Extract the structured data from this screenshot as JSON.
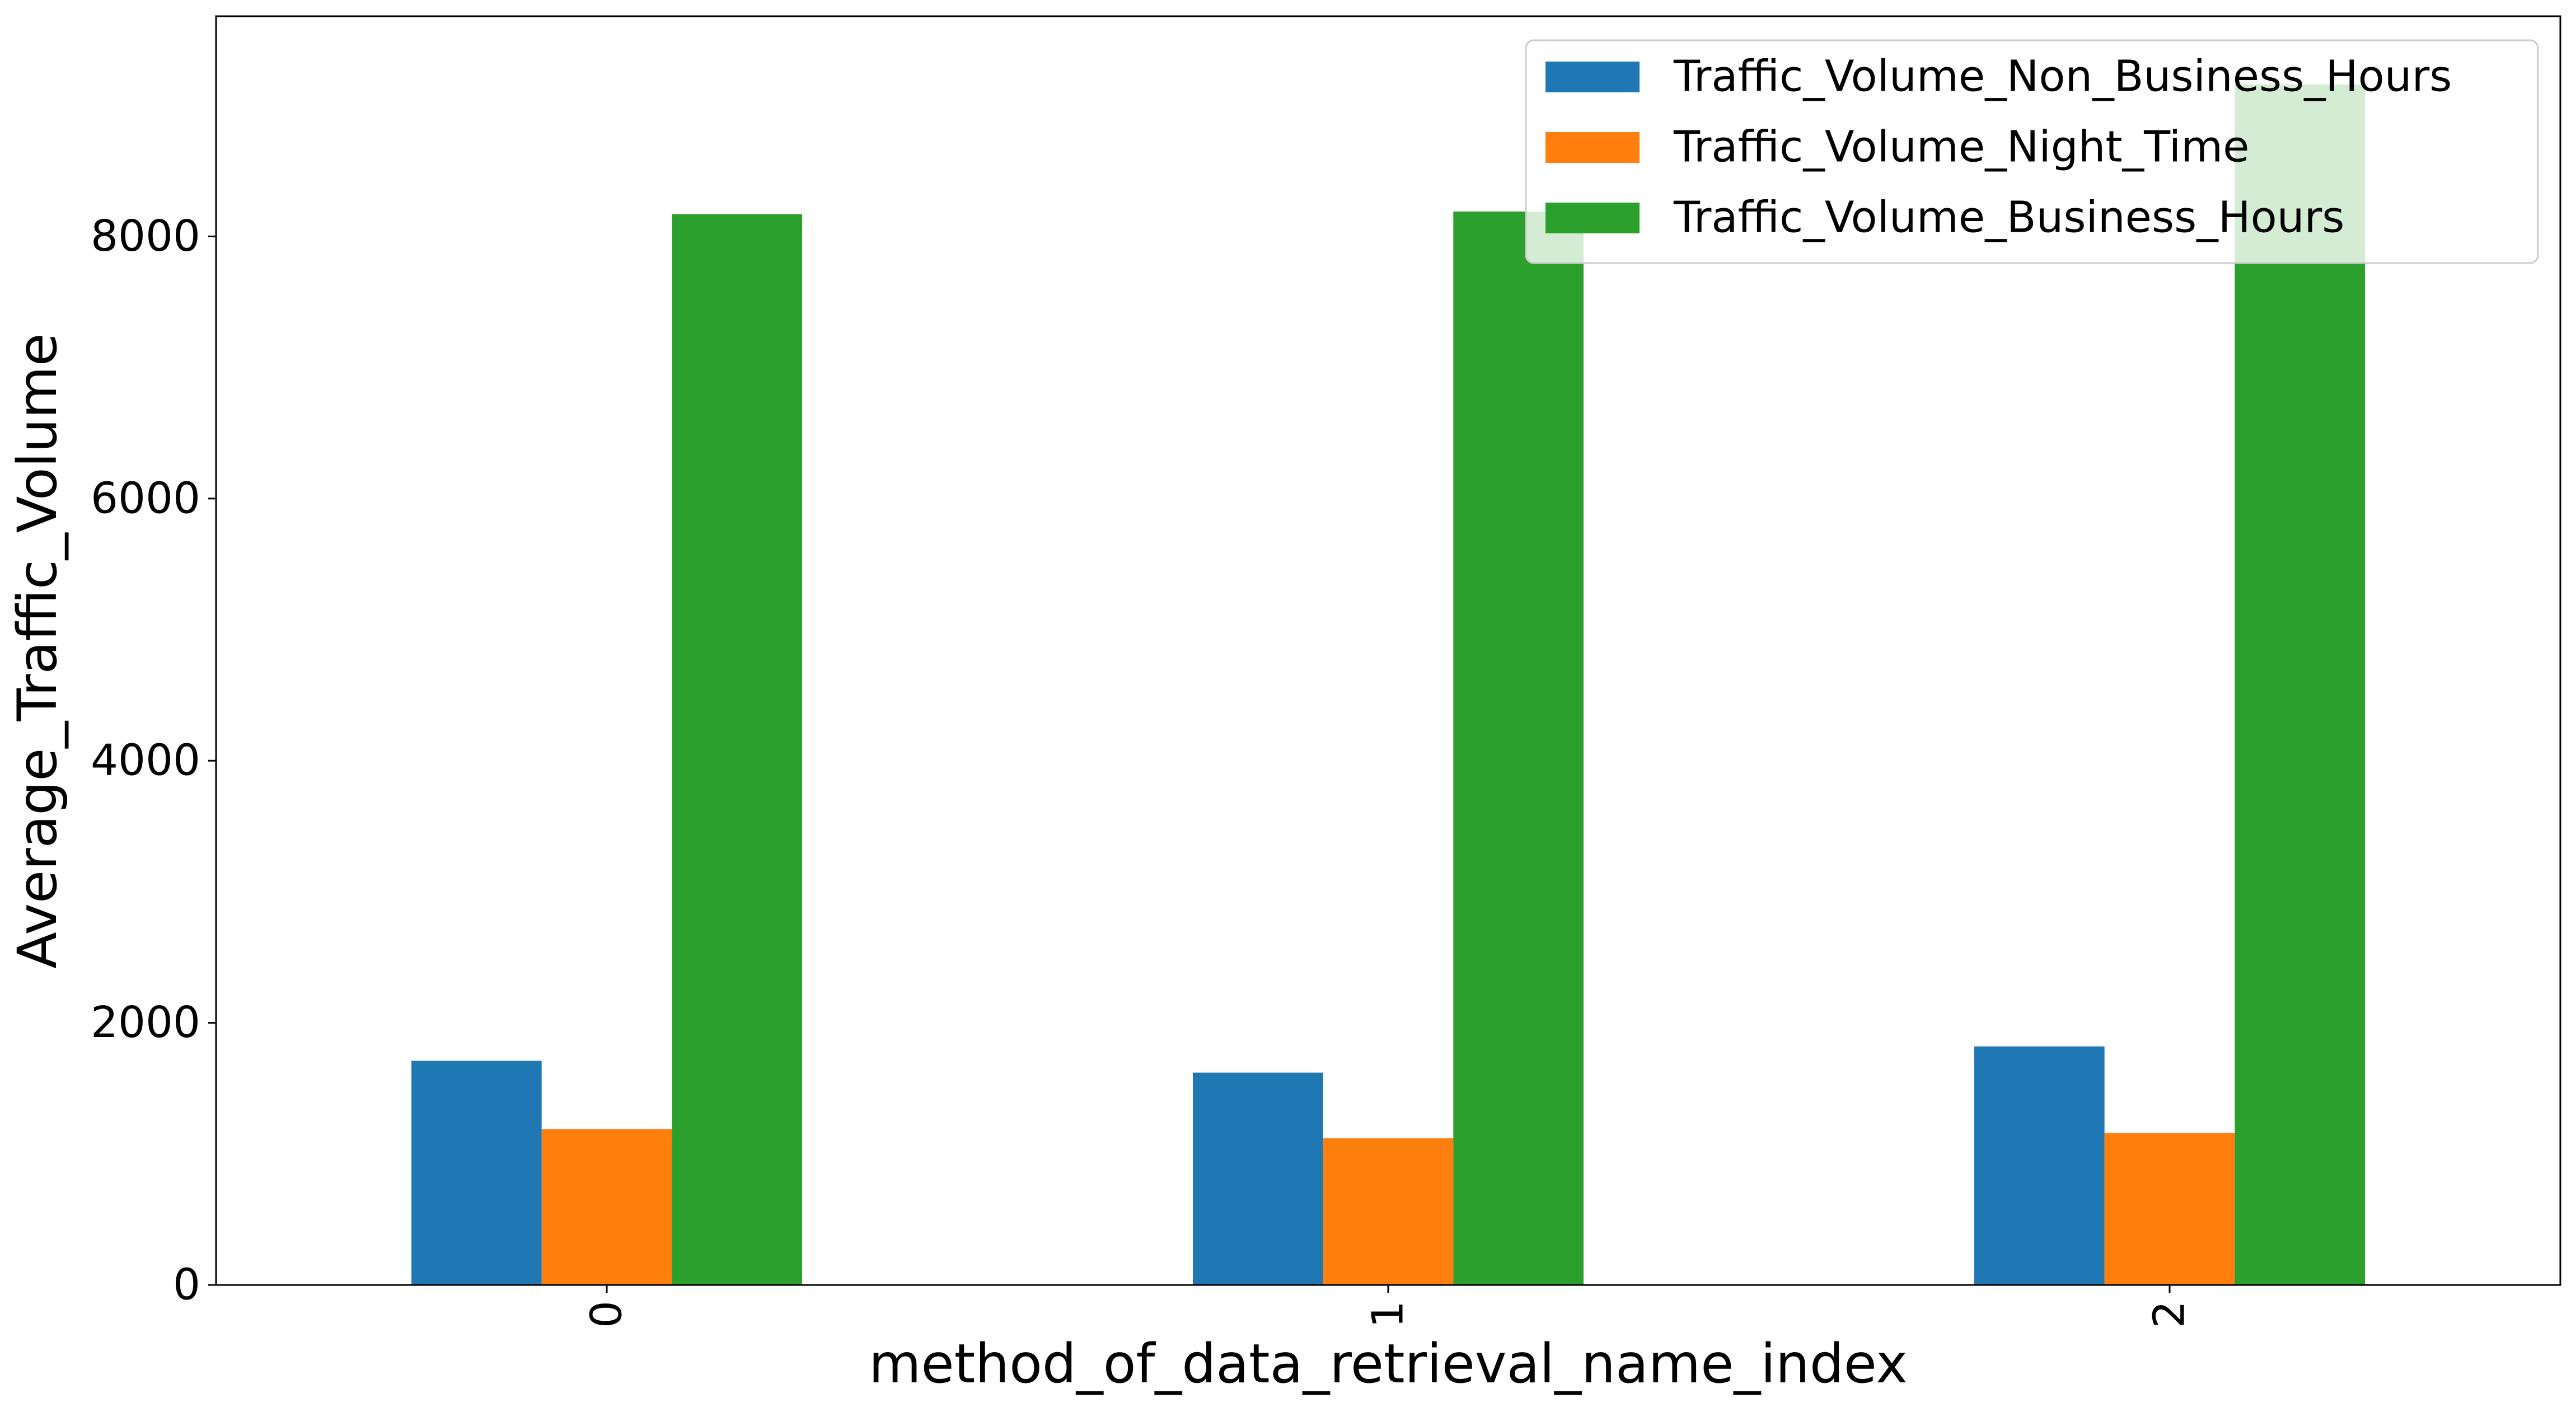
{
  "chart_data": {
    "type": "bar",
    "title": "",
    "xlabel": "method_of_data_retrieval_name_index",
    "ylabel": "Average_Traffic_Volume",
    "categories": [
      "0",
      "1",
      "2"
    ],
    "series": [
      {
        "name": "Traffic_Volume_Non_Business_Hours",
        "color": "#1f77b4",
        "values": [
          1710,
          1620,
          1820
        ]
      },
      {
        "name": "Traffic_Volume_Night_Time",
        "color": "#ff7f0e",
        "values": [
          1190,
          1120,
          1160
        ]
      },
      {
        "name": "Traffic_Volume_Business_Hours",
        "color": "#2ca02c",
        "values": [
          8170,
          8190,
          9160
        ]
      }
    ],
    "ylim": [
      0,
      9680
    ],
    "yticks": [
      0,
      2000,
      4000,
      6000,
      8000
    ],
    "grid": false,
    "legend_position": "top-right"
  }
}
